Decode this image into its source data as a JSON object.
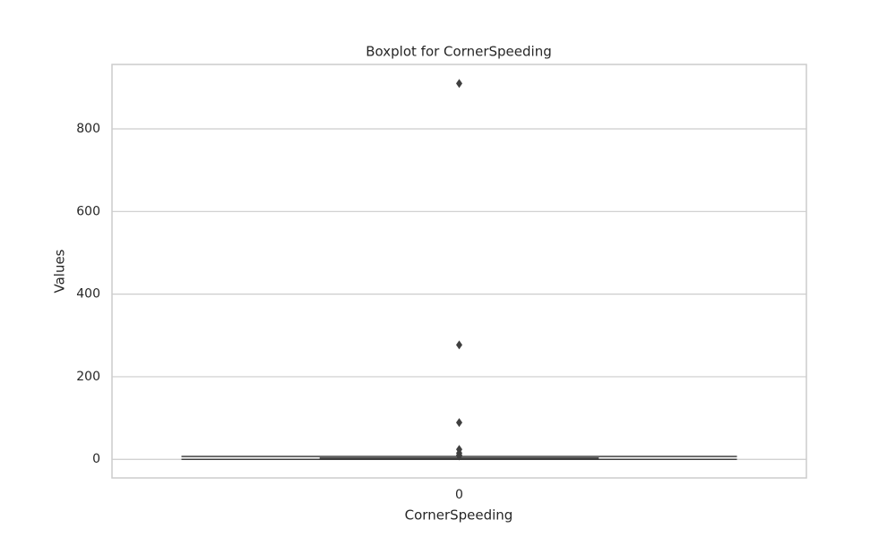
{
  "chart_data": {
    "type": "box",
    "title": "Boxplot for CornerSpeeding",
    "xlabel": "CornerSpeeding",
    "ylabel": "Values",
    "categories": [
      "0"
    ],
    "boxes": [
      {
        "whislo": 0,
        "q1": 0,
        "median": 1,
        "q3": 3,
        "whishi": 7,
        "fliers": [
          910,
          277,
          89,
          24,
          15,
          10,
          8
        ]
      }
    ],
    "color": "#4c72b0",
    "edge_color": "#3f3f3f",
    "ylim": [
      -45,
      956
    ],
    "yticks": [
      0,
      200,
      400,
      600,
      800
    ],
    "grid": true
  }
}
